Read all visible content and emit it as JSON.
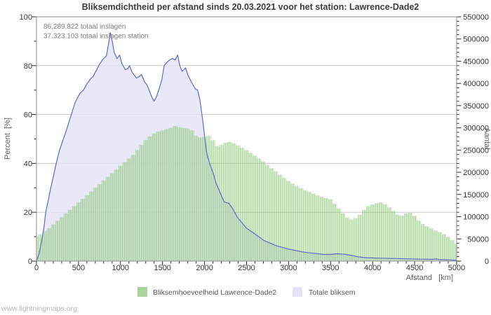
{
  "title": "Bliksemdichtheid per afstand sinds 20.03.2021 voor het station: Lawrence-Dade2",
  "annotations": {
    "total_strikes": "86.289.822 totaal inslagen",
    "station_strikes": "37.323.103 totaal inslagen station"
  },
  "watermark": "www.lightningmaps.org",
  "axes": {
    "left_label": "Percent  [%]",
    "right_label": "Aantal",
    "x_label": "Afstand   [km]",
    "left_ticks": [
      0,
      20,
      40,
      60,
      80,
      100
    ],
    "left_minor_step": 10,
    "right_ticks": [
      0,
      50000,
      100000,
      150000,
      200000,
      250000,
      300000,
      350000,
      400000,
      450000,
      500000,
      550000
    ],
    "right_minor_step": 10000,
    "x_ticks": [
      0,
      500,
      1000,
      1500,
      2000,
      2500,
      3000,
      3500,
      4000,
      4500,
      5000
    ],
    "x_minor_step": 100
  },
  "legend": [
    {
      "label": "Bliksemhoeveelheid Lawrence-Dade2",
      "color": "#a9d49d"
    },
    {
      "label": "Totale bliksem",
      "color": "#e4e4f6"
    }
  ],
  "colors": {
    "station_green_main": "rgba(124,191,106,0.52)",
    "station_green_light": "rgba(167,214,146,0.40)",
    "total_area_lavender": "#e3e3f5",
    "total_line_blue": "#5f6ac8",
    "grid": "#c9c9c9",
    "axis": "#8c8c8c",
    "tick": "#2a2a2a"
  },
  "chart_data": {
    "type": "mixed",
    "title": "Bliksemdichtheid per afstand sinds 20.03.2021 voor het station: Lawrence-Dade2",
    "xlabel": "Afstand [km]",
    "ylabel_left": "Percent [%]",
    "ylabel_right": "Aantal",
    "x_range": [
      0,
      5000
    ],
    "left_range": [
      0,
      100
    ],
    "right_range": [
      0,
      550000
    ],
    "grid": "horizontal-major",
    "legend_position": "bottom-center",
    "series": [
      {
        "name": "Bliksemhoeveelheid Lawrence-Dade2",
        "type": "bar",
        "axis": "left",
        "unit": "percent",
        "bin_km": 50,
        "x_start": 0,
        "values": [
          10,
          11,
          12.3,
          13.5,
          15,
          16.5,
          18,
          19.5,
          21,
          22.5,
          24,
          25.5,
          27,
          28.5,
          30,
          31.5,
          33,
          34.5,
          36,
          37.5,
          39,
          40.5,
          42,
          43.5,
          45.5,
          47.5,
          49.5,
          51,
          52.3,
          53,
          53.5,
          54,
          54.6,
          55.3,
          54.8,
          54.5,
          54.2,
          53.5,
          51.2,
          50.6,
          50.9,
          51.4,
          49.5,
          47,
          47.6,
          48.4,
          48.8,
          48.2,
          47.3,
          46.4,
          45.4,
          44.3,
          43.2,
          42,
          40.7,
          39.4,
          38,
          36.7,
          35.3,
          34,
          32.8,
          31.7,
          30.7,
          29.8,
          29,
          28.3,
          27.6,
          26.9,
          26.3,
          25.8,
          25.3,
          23.5,
          21.5,
          19.5,
          17.8,
          17,
          17.6,
          19,
          21,
          22.5,
          23.2,
          23.7,
          24,
          23.3,
          22,
          20.5,
          19,
          18.6,
          19.6,
          19.8,
          18.5,
          16.5,
          15.2,
          14.2,
          13.3,
          12.5,
          11.8,
          11,
          10,
          8.5,
          7
        ]
      },
      {
        "name": "Totale bliksem",
        "type": "area-line",
        "axis": "right",
        "unit": "aantal",
        "points": [
          [
            0,
            0
          ],
          [
            30,
            16000
          ],
          [
            60,
            44000
          ],
          [
            90,
            77000
          ],
          [
            110,
            110000
          ],
          [
            140,
            137000
          ],
          [
            170,
            165000
          ],
          [
            200,
            190000
          ],
          [
            235,
            220000
          ],
          [
            270,
            247000
          ],
          [
            300,
            264000
          ],
          [
            350,
            291000
          ],
          [
            415,
            330000
          ],
          [
            460,
            357000
          ],
          [
            500,
            372000
          ],
          [
            520,
            378000
          ],
          [
            560,
            385000
          ],
          [
            600,
            399000
          ],
          [
            650,
            412000
          ],
          [
            672,
            415000
          ],
          [
            700,
            425000
          ],
          [
            750,
            443000
          ],
          [
            790,
            454000
          ],
          [
            833,
            462000
          ],
          [
            858,
            490000
          ],
          [
            880,
            514000
          ],
          [
            905,
            492000
          ],
          [
            925,
            470000
          ],
          [
            958,
            456000
          ],
          [
            990,
            464000
          ],
          [
            1015,
            445000
          ],
          [
            1058,
            431000
          ],
          [
            1085,
            433000
          ],
          [
            1108,
            440000
          ],
          [
            1135,
            426000
          ],
          [
            1190,
            412000
          ],
          [
            1225,
            416000
          ],
          [
            1250,
            420000
          ],
          [
            1285,
            404000
          ],
          [
            1317,
            396000
          ],
          [
            1340,
            385000
          ],
          [
            1375,
            368000
          ],
          [
            1400,
            360000
          ],
          [
            1430,
            371000
          ],
          [
            1460,
            388000
          ],
          [
            1490,
            407000
          ],
          [
            1520,
            440000
          ],
          [
            1550,
            447000
          ],
          [
            1585,
            453000
          ],
          [
            1615,
            456000
          ],
          [
            1650,
            453000
          ],
          [
            1680,
            464000
          ],
          [
            1705,
            440000
          ],
          [
            1733,
            427000
          ],
          [
            1775,
            435000
          ],
          [
            1805,
            418000
          ],
          [
            1850,
            401000
          ],
          [
            1890,
            388000
          ],
          [
            1917,
            385000
          ],
          [
            1945,
            363000
          ],
          [
            1975,
            322000
          ],
          [
            2000,
            283000
          ],
          [
            2025,
            244000
          ],
          [
            2060,
            220000
          ],
          [
            2085,
            207000
          ],
          [
            2110,
            194000
          ],
          [
            2135,
            176000
          ],
          [
            2170,
            161000
          ],
          [
            2210,
            143000
          ],
          [
            2235,
            133000
          ],
          [
            2290,
            130000
          ],
          [
            2335,
            118000
          ],
          [
            2390,
            99000
          ],
          [
            2420,
            92000
          ],
          [
            2500,
            74000
          ],
          [
            2585,
            63000
          ],
          [
            2710,
            46000
          ],
          [
            2850,
            35000
          ],
          [
            3000,
            27000
          ],
          [
            3190,
            20000
          ],
          [
            3420,
            15000
          ],
          [
            3500,
            15000
          ],
          [
            3580,
            16500
          ],
          [
            3670,
            15500
          ],
          [
            3750,
            12600
          ],
          [
            3835,
            9400
          ],
          [
            3920,
            7700
          ],
          [
            4080,
            6600
          ],
          [
            4250,
            6000
          ],
          [
            4420,
            5000
          ],
          [
            4580,
            4400
          ],
          [
            4700,
            3900
          ],
          [
            4760,
            4900
          ],
          [
            4800,
            3300
          ],
          [
            4900,
            2800
          ],
          [
            5000,
            1700
          ]
        ]
      }
    ]
  }
}
